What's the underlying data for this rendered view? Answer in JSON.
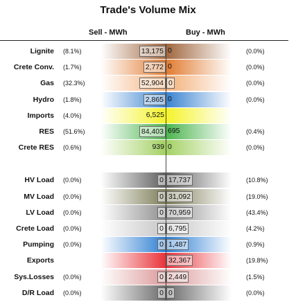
{
  "title": "Trade's Volume Mix",
  "headers": {
    "sell": "Sell - MWh",
    "buy": "Buy - MWh"
  },
  "chart_data": {
    "type": "table",
    "title": "Trade's Volume Mix",
    "columns": [
      "Sell - MWh",
      "Buy - MWh"
    ],
    "rows": [
      {
        "label": "Lignite",
        "sell_pct": "(8.1%)",
        "sell": "13,175",
        "buy": "0",
        "buy_pct": "(0.0%)",
        "sell_color": "#a0673f",
        "buy_color": "#a0673f",
        "sell_box": true,
        "buy_box": false
      },
      {
        "label": "Crete Conv.",
        "sell_pct": "(1.7%)",
        "sell": "2,772",
        "buy": "0",
        "buy_pct": "(0.0%)",
        "sell_color": "#e17c32",
        "buy_color": "#e17c32",
        "sell_box": true,
        "buy_box": false
      },
      {
        "label": "Gas",
        "sell_pct": "(32.3%)",
        "sell": "52,904",
        "buy": "0",
        "buy_pct": "(0.0%)",
        "sell_color": "#f3b079",
        "buy_color": "#f3b079",
        "sell_box": true,
        "buy_box": true
      },
      {
        "label": "Hydro",
        "sell_pct": "(1.8%)",
        "sell": "2,865",
        "buy": "0",
        "buy_pct": "(0.0%)",
        "sell_color": "#3a83d0",
        "buy_color": "#3a83d0",
        "sell_box": true,
        "buy_box": false
      },
      {
        "label": "Imports",
        "sell_pct": "(4.0%)",
        "sell": "6,525",
        "buy": "",
        "buy_pct": "",
        "sell_color": "#f4f32b",
        "buy_color": "#f4f32b",
        "sell_box": false,
        "buy_box": false
      },
      {
        "label": "RES",
        "sell_pct": "(51.6%)",
        "sell": "84,403",
        "buy": "695",
        "buy_pct": "(0.4%)",
        "sell_color": "#4cb54f",
        "buy_color": "#4cb54f",
        "sell_box": true,
        "buy_box": false
      },
      {
        "label": "Crete RES",
        "sell_pct": "(0.6%)",
        "sell": "939",
        "buy": "0",
        "buy_pct": "(0.0%)",
        "sell_color": "#a4d165",
        "buy_color": "#a4d165",
        "sell_box": false,
        "buy_box": false
      },
      {
        "label": "HV Load",
        "sell_pct": "(0.0%)",
        "sell": "0",
        "buy": "17,737",
        "buy_pct": "(10.8%)",
        "sell_color": "#5e5e5e",
        "buy_color": "#5e5e5e",
        "sell_box": true,
        "buy_box": true
      },
      {
        "label": "MV Load",
        "sell_pct": "(0.0%)",
        "sell": "0",
        "buy": "31,092",
        "buy_pct": "(19.0%)",
        "sell_color": "#7e7e5a",
        "buy_color": "#7e7e5a",
        "sell_box": true,
        "buy_box": true
      },
      {
        "label": "LV Load",
        "sell_pct": "(0.0%)",
        "sell": "0",
        "buy": "70,959",
        "buy_pct": "(43.4%)",
        "sell_color": "#8f8f8f",
        "buy_color": "#8f8f8f",
        "sell_box": true,
        "buy_box": true
      },
      {
        "label": "Crete Load",
        "sell_pct": "(0.0%)",
        "sell": "0",
        "buy": "6,795",
        "buy_pct": "(4.2%)",
        "sell_color": "#c6c6c6",
        "buy_color": "#c6c6c6",
        "sell_box": true,
        "buy_box": true
      },
      {
        "label": "Pumping",
        "sell_pct": "(0.0%)",
        "sell": "0",
        "buy": "1,487",
        "buy_pct": "(0.9%)",
        "sell_color": "#2e7fd3",
        "buy_color": "#2e7fd3",
        "sell_box": true,
        "buy_box": true
      },
      {
        "label": "Exports",
        "sell_pct": "",
        "sell": "",
        "buy": "32,367",
        "buy_pct": "(19.8%)",
        "sell_color": "#e8333a",
        "buy_color": "#e8333a",
        "sell_box": false,
        "buy_box": true
      },
      {
        "label": "Sys.Losses",
        "sell_pct": "(0.0%)",
        "sell": "0",
        "buy": "2,449",
        "buy_pct": "(1.5%)",
        "sell_color": "#dc9a9a",
        "buy_color": "#dc9a9a",
        "sell_box": true,
        "buy_box": true
      },
      {
        "label": "D/R Load",
        "sell_pct": "(0.0%)",
        "sell": "0",
        "buy": "0",
        "buy_pct": "(0.0%)",
        "sell_color": "#6a6a6a",
        "buy_color": "#6a6a6a",
        "sell_box": true,
        "buy_box": true
      }
    ]
  }
}
